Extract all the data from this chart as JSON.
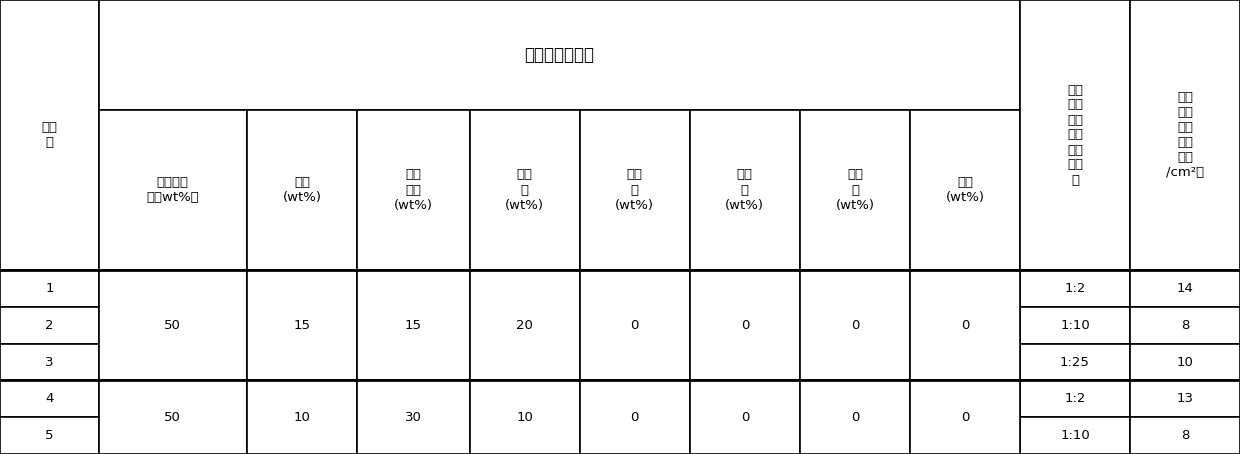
{
  "title_span": "消泡剂主体成分",
  "col_headers": [
    [
      "实施\n例",
      "钛酸四丁\n酯（wt%）",
      "钛粉\n(wt%)",
      "二氧\n化钛\n(wt%)",
      "铝酸\n铵\n(wt%)",
      "氧化\n钒\n(wt%)",
      "氧化\n钨\n(wt%)",
      "氧化\n铅\n(wt%)",
      "硼砂\n(wt%)",
      "主体\n成分\n与溶\n剂成\n分的\n质量\n比",
      "单位\n面积\n气泡\n个数\n（个\n/cm²）"
    ]
  ],
  "rows": [
    {
      "id": "1",
      "vals": [
        "",
        "",
        "",
        "",
        "",
        "",
        "",
        ""
      ],
      "ratio": "1:2",
      "bubbles": "14"
    },
    {
      "id": "2",
      "vals": [
        "50",
        "15",
        "15",
        "20",
        "0",
        "0",
        "0",
        "0"
      ],
      "ratio": "1:10",
      "bubbles": "8"
    },
    {
      "id": "3",
      "vals": [
        "",
        "",
        "",
        "",
        "",
        "",
        "",
        ""
      ],
      "ratio": "1:25",
      "bubbles": "10"
    },
    {
      "id": "4",
      "vals": [
        "",
        "",
        "",
        "",
        "",
        "",
        "",
        ""
      ],
      "ratio": "1:2",
      "bubbles": "13"
    },
    {
      "id": "5",
      "vals": [
        "50",
        "10",
        "30",
        "10",
        "0",
        "0",
        "0",
        "0"
      ],
      "ratio": "1:10",
      "bubbles": "8"
    }
  ],
  "merge_groups": [
    {
      "rows": [
        0,
        1,
        2
      ],
      "cols": [
        1,
        2,
        3,
        4,
        5,
        6,
        7,
        8
      ],
      "vals": [
        "50",
        "15",
        "15",
        "20",
        "0",
        "0",
        "0",
        "0"
      ]
    },
    {
      "rows": [
        3,
        4
      ],
      "cols": [
        1,
        2,
        3,
        4,
        5,
        6,
        7,
        8
      ],
      "vals": [
        "50",
        "10",
        "30",
        "10",
        "0",
        "0",
        "0",
        "0"
      ]
    }
  ],
  "bg_color": "#ffffff",
  "line_color": "#000000",
  "font_color": "#000000",
  "font_size": 9.5,
  "header_font_size": 9.5
}
